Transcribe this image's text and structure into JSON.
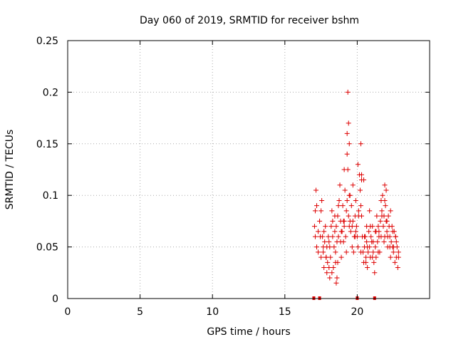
{
  "chart_data": {
    "type": "scatter",
    "title": "Day 060 of 2019, SRMTID for receiver bshm",
    "xlabel": "GPS time / hours",
    "ylabel": "SRMTID / TECUs",
    "xlim": [
      0,
      25
    ],
    "ylim": [
      0,
      0.25
    ],
    "xticks": [
      "0",
      "5",
      "10",
      "15",
      "20"
    ],
    "xtick_values": [
      0,
      5,
      10,
      15,
      20
    ],
    "yticks": [
      "0",
      "0.05",
      "0.1",
      "0.15",
      "0.2",
      "0.25"
    ],
    "ytick_values": [
      0,
      0.05,
      0.1,
      0.15,
      0.2,
      0.25
    ],
    "grid": true,
    "marker": "+",
    "colors": {
      "series": "#dd0000",
      "grid": "#aaaaaa",
      "axes": "#000000"
    },
    "series": [
      {
        "name": "SRMTID",
        "data_window_hours": [
          17.0,
          22.9
        ],
        "x": [
          17.05,
          17.1,
          17.15,
          17.2,
          17.3,
          17.4,
          17.5,
          17.55,
          17.6,
          17.65,
          17.7,
          17.75,
          17.8,
          17.85,
          17.9,
          17.95,
          18.0,
          18.05,
          18.1,
          18.15,
          18.2,
          18.25,
          18.3,
          18.35,
          18.4,
          18.45,
          18.5,
          18.55,
          18.6,
          18.65,
          18.7,
          18.75,
          18.8,
          18.85,
          18.9,
          18.95,
          19.0,
          19.05,
          19.1,
          19.15,
          19.2,
          19.25,
          19.3,
          19.35,
          19.4,
          19.45,
          19.5,
          19.55,
          19.6,
          19.65,
          19.7,
          19.75,
          19.8,
          19.85,
          19.9,
          19.95,
          20.0,
          20.05,
          20.1,
          20.15,
          20.2,
          20.25,
          20.3,
          20.35,
          20.4,
          20.45,
          20.5,
          20.55,
          20.6,
          20.65,
          20.7,
          20.75,
          20.8,
          20.85,
          20.9,
          20.95,
          21.0,
          21.05,
          21.1,
          21.15,
          21.2,
          21.25,
          21.3,
          21.35,
          21.4,
          21.45,
          21.5,
          21.55,
          21.6,
          21.65,
          21.7,
          21.75,
          21.8,
          21.85,
          21.9,
          21.95,
          22.0,
          22.05,
          22.1,
          22.15,
          22.2,
          22.25,
          22.3,
          22.35,
          22.4,
          22.45,
          22.5,
          22.55,
          22.6,
          22.65,
          22.7,
          22.75,
          22.8,
          22.85,
          17.1,
          17.3,
          17.5,
          17.7,
          17.9,
          18.1,
          18.3,
          18.5,
          18.7,
          18.9,
          19.1,
          19.3,
          19.5,
          19.7,
          19.9,
          20.1,
          20.3,
          20.5,
          20.7,
          20.9,
          21.1,
          21.3,
          21.5,
          21.7,
          21.9,
          22.1,
          22.3,
          22.5,
          22.7,
          17.2,
          17.45,
          17.65,
          17.85,
          18.05,
          18.25,
          18.45,
          18.65,
          18.85,
          19.05,
          19.25,
          19.45,
          19.65,
          19.85,
          20.05,
          20.25,
          20.45,
          20.65,
          20.85,
          21.05,
          21.25,
          21.45,
          21.65,
          21.85,
          22.05,
          22.25,
          22.45,
          22.65,
          22.85,
          19.35,
          19.4,
          19.3,
          19.45,
          20.25,
          20.3,
          21.9,
          22.0,
          18.6,
          18.55,
          19.1,
          20.6
        ],
        "y": [
          0.07,
          0.085,
          0.105,
          0.05,
          0.065,
          0.075,
          0.085,
          0.095,
          0.06,
          0.045,
          0.03,
          0.055,
          0.07,
          0.04,
          0.05,
          0.035,
          0.06,
          0.03,
          0.02,
          0.04,
          0.07,
          0.085,
          0.06,
          0.03,
          0.05,
          0.065,
          0.045,
          0.07,
          0.055,
          0.08,
          0.06,
          0.095,
          0.11,
          0.075,
          0.04,
          0.065,
          0.09,
          0.055,
          0.075,
          0.105,
          0.06,
          0.085,
          0.14,
          0.125,
          0.08,
          0.07,
          0.1,
          0.065,
          0.09,
          0.05,
          0.075,
          0.045,
          0.06,
          0.08,
          0.095,
          0.07,
          0.06,
          0.05,
          0.085,
          0.12,
          0.105,
          0.09,
          0.08,
          0.06,
          0.045,
          0.035,
          0.05,
          0.06,
          0.04,
          0.055,
          0.03,
          0.045,
          0.065,
          0.05,
          0.04,
          0.06,
          0.055,
          0.07,
          0.045,
          0.035,
          0.025,
          0.05,
          0.065,
          0.08,
          0.055,
          0.07,
          0.06,
          0.045,
          0.075,
          0.095,
          0.085,
          0.1,
          0.07,
          0.08,
          0.06,
          0.09,
          0.075,
          0.065,
          0.05,
          0.08,
          0.07,
          0.06,
          0.04,
          0.055,
          0.07,
          0.05,
          0.045,
          0.065,
          0.035,
          0.06,
          0.04,
          0.05,
          0.03,
          0.045,
          0.06,
          0.045,
          0.04,
          0.065,
          0.025,
          0.05,
          0.075,
          0.035,
          0.09,
          0.065,
          0.07,
          0.095,
          0.075,
          0.11,
          0.065,
          0.08,
          0.115,
          0.06,
          0.05,
          0.07,
          0.055,
          0.04,
          0.065,
          0.08,
          0.095,
          0.06,
          0.085,
          0.05,
          0.055,
          0.09,
          0.06,
          0.05,
          0.04,
          0.055,
          0.025,
          0.08,
          0.035,
          0.055,
          0.075,
          0.045,
          0.1,
          0.07,
          0.06,
          0.13,
          0.045,
          0.115,
          0.07,
          0.085,
          0.04,
          0.065,
          0.045,
          0.06,
          0.055,
          0.075,
          0.05,
          0.065,
          0.06,
          0.04,
          0.2,
          0.17,
          0.16,
          0.15,
          0.15,
          0.12,
          0.11,
          0.105,
          0.02,
          0.015,
          0.125,
          0.035
        ]
      }
    ],
    "gap_markers_hours": [
      17.0,
      17.4,
      20.0,
      21.2
    ]
  }
}
